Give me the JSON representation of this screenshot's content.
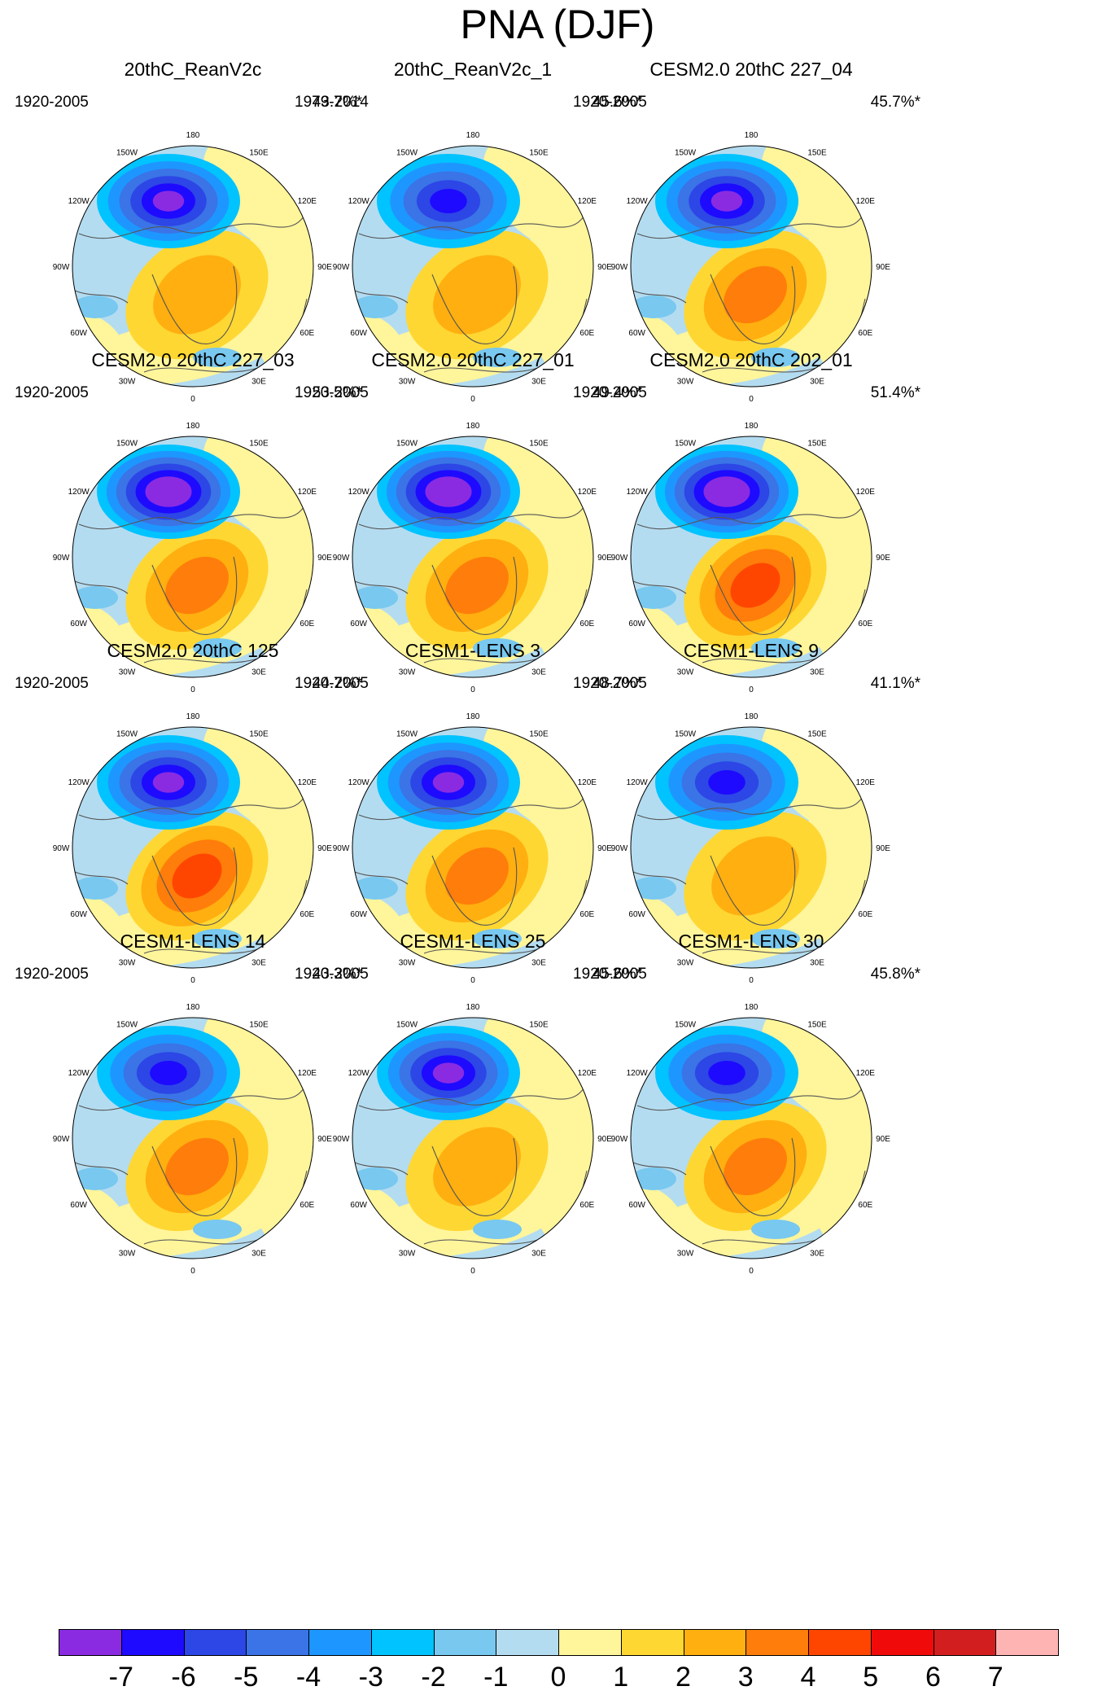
{
  "figure": {
    "title": "PNA (DJF)"
  },
  "longitude_labels": [
    "180",
    "150E",
    "120E",
    "90E",
    "60E",
    "30E",
    "0",
    "30W",
    "60W",
    "90W",
    "120W",
    "150W"
  ],
  "panels": [
    {
      "title": "20thC_ReanV2c",
      "period": "1920-2005",
      "variance": "43.7%*",
      "min_level": -6,
      "max_level": 2
    },
    {
      "title": "20thC_ReanV2c_1",
      "period": "1979-2014",
      "variance": "45.6%*",
      "min_level": -5,
      "max_level": 2
    },
    {
      "title": "CESM2.0 20thC 227_04",
      "period": "1920-2005",
      "variance": "45.7%*",
      "min_level": -6,
      "max_level": 3
    },
    {
      "title": "CESM2.0 20thC 227_03",
      "period": "1920-2005",
      "variance": "53.5%*",
      "min_level": -7,
      "max_level": 3
    },
    {
      "title": "CESM2.0 20thC 227_01",
      "period": "1920-2005",
      "variance": "49.4%*",
      "min_level": -7,
      "max_level": 3
    },
    {
      "title": "CESM2.0 20thC 202_01",
      "period": "1920-2005",
      "variance": "51.4%*",
      "min_level": -7,
      "max_level": 4
    },
    {
      "title": "CESM2.0 20thC 125",
      "period": "1920-2005",
      "variance": "44.7%*",
      "min_level": -6,
      "max_level": 4
    },
    {
      "title": "CESM1-LENS 3",
      "period": "1920-2005",
      "variance": "48.7%*",
      "min_level": -6,
      "max_level": 3
    },
    {
      "title": "CESM1-LENS 9",
      "period": "1920-2005",
      "variance": "41.1%*",
      "min_level": -5,
      "max_level": 2
    },
    {
      "title": "CESM1-LENS 14",
      "period": "1920-2005",
      "variance": "43.3%*",
      "min_level": -5,
      "max_level": 3
    },
    {
      "title": "CESM1-LENS 25",
      "period": "1920-2005",
      "variance": "45.6%*",
      "min_level": -6,
      "max_level": 2
    },
    {
      "title": "CESM1-LENS 30",
      "period": "1920-2005",
      "variance": "45.8%*",
      "min_level": -5,
      "max_level": 3
    }
  ],
  "colorbar": {
    "labels": [
      "-7",
      "-6",
      "-5",
      "-4",
      "-3",
      "-2",
      "-1",
      "0",
      "1",
      "2",
      "3",
      "4",
      "5",
      "6",
      "7"
    ],
    "colors": [
      "#8a2be2",
      "#1e0aff",
      "#2d46e6",
      "#3a74e6",
      "#1e96ff",
      "#00c3ff",
      "#78c8f0",
      "#b4dcf0",
      "#fff59b",
      "#ffd732",
      "#ffaf0f",
      "#ff7d0a",
      "#ff4600",
      "#f00a0a",
      "#d21e1e",
      "#ffb4b4"
    ]
  }
}
